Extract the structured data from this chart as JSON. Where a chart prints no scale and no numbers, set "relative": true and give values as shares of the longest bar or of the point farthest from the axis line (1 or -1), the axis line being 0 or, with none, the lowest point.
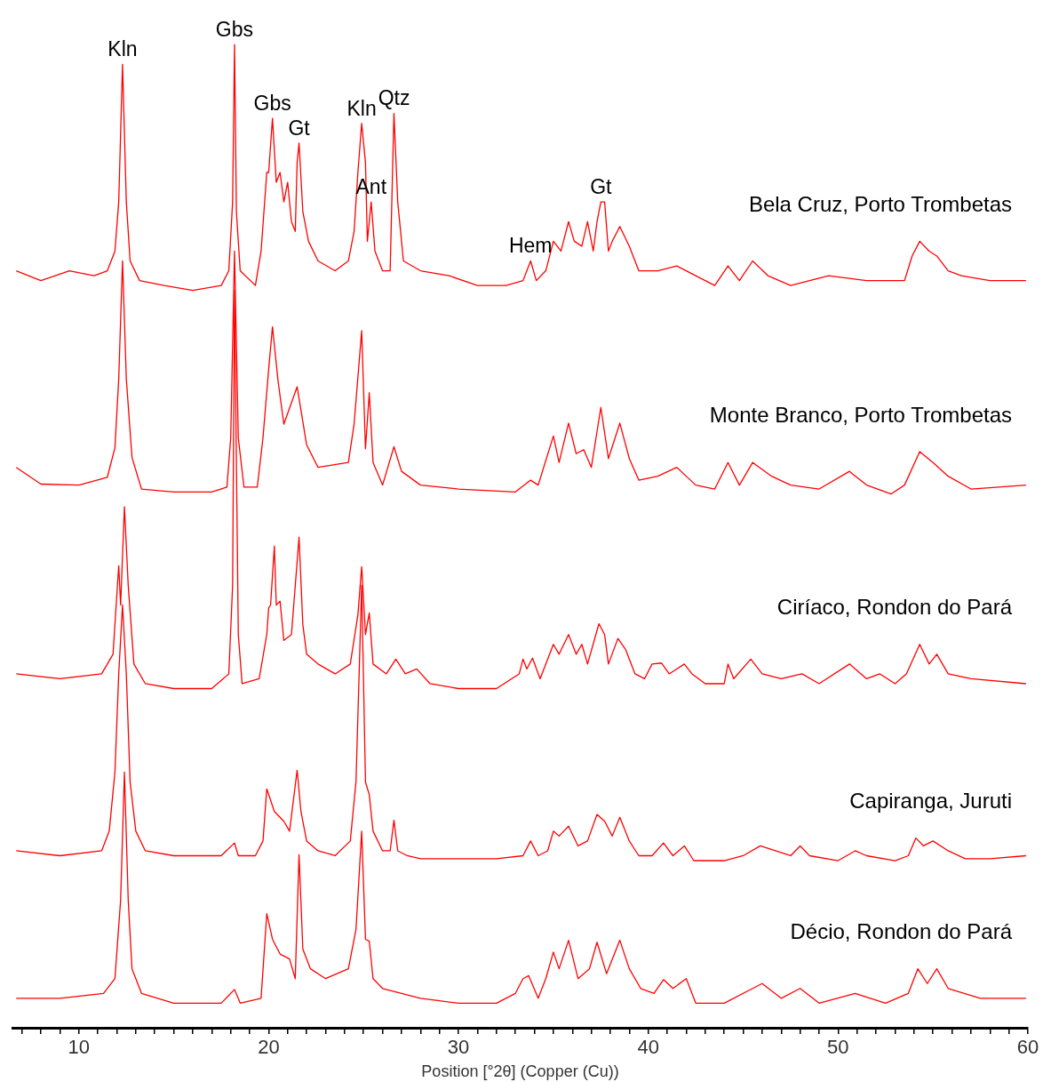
{
  "chart_data": {
    "type": "line",
    "relative": true,
    "xlabel": "Position [°2θ] (Copper (Cu))",
    "xlim": [
      6.5,
      60
    ],
    "xticks": [
      {
        "value": 7,
        "label": null
      },
      {
        "value": 8,
        "label": null
      },
      {
        "value": 9,
        "label": null
      },
      10,
      {
        "value": 11,
        "label": null
      },
      {
        "value": 12,
        "label": null
      },
      {
        "value": 13,
        "label": null
      },
      {
        "value": 14,
        "label": null
      },
      {
        "value": 15,
        "label": null
      },
      {
        "value": 16,
        "label": null
      },
      {
        "value": 17,
        "label": null
      },
      {
        "value": 18,
        "label": null
      },
      {
        "value": 19,
        "label": null
      },
      20,
      {
        "value": 21,
        "label": null
      },
      {
        "value": 22,
        "label": null
      },
      {
        "value": 23,
        "label": null
      },
      {
        "value": 24,
        "label": null
      },
      {
        "value": 25,
        "label": null
      },
      {
        "value": 26,
        "label": null
      },
      {
        "value": 27,
        "label": null
      },
      {
        "value": 28,
        "label": null
      },
      {
        "value": 29,
        "label": null
      },
      30,
      {
        "value": 31,
        "label": null
      },
      {
        "value": 32,
        "label": null
      },
      {
        "value": 33,
        "label": null
      },
      {
        "value": 34,
        "label": null
      },
      {
        "value": 35,
        "label": null
      },
      {
        "value": 36,
        "label": null
      },
      {
        "value": 37,
        "label": null
      },
      {
        "value": 38,
        "label": null
      },
      {
        "value": 39,
        "label": null
      },
      40,
      {
        "value": 41,
        "label": null
      },
      {
        "value": 42,
        "label": null
      },
      {
        "value": 43,
        "label": null
      },
      {
        "value": 44,
        "label": null
      },
      {
        "value": 45,
        "label": null
      },
      {
        "value": 46,
        "label": null
      },
      {
        "value": 47,
        "label": null
      },
      {
        "value": 48,
        "label": null
      },
      {
        "value": 49,
        "label": null
      },
      50,
      {
        "value": 51,
        "label": null
      },
      {
        "value": 52,
        "label": null
      },
      {
        "value": 53,
        "label": null
      },
      {
        "value": 54,
        "label": null
      },
      {
        "value": 55,
        "label": null
      },
      {
        "value": 56,
        "label": null
      },
      {
        "value": 57,
        "label": null
      },
      {
        "value": 58,
        "label": null
      },
      {
        "value": 59,
        "label": null
      },
      60
    ],
    "grid": false,
    "legend": false,
    "marker": "none",
    "line_style": "solid",
    "series": [
      {
        "name": "Bela Cruz, Porto Trombetas",
        "color": "#ff0000",
        "x": [
          6.7,
          8,
          9.5,
          10.8,
          11.5,
          11.9,
          12.1,
          12.3,
          12.5,
          12.7,
          13.2,
          14.5,
          16,
          17.5,
          17.9,
          18.1,
          18.2,
          18.3,
          18.5,
          19.3,
          19.6,
          19.9,
          20.0,
          20.2,
          20.4,
          20.6,
          20.8,
          21.0,
          21.2,
          21.4,
          21.5,
          21.6,
          21.8,
          22.1,
          22.6,
          23.5,
          24.2,
          24.5,
          24.7,
          24.9,
          25.1,
          25.2,
          25.4,
          25.6,
          26.0,
          26.4,
          26.6,
          26.8,
          27.1,
          28,
          29.5,
          31,
          32.5,
          33.4,
          33.8,
          34.1,
          34.6,
          35.0,
          35.4,
          35.8,
          36.1,
          36.5,
          36.8,
          37.1,
          37.3,
          37.5,
          37.7,
          37.9,
          38.1,
          38.5,
          39.0,
          39.5,
          40.5,
          41.5,
          42.5,
          43.5,
          44.2,
          44.8,
          45.5,
          46.3,
          47.5,
          49.5,
          51.5,
          53.5,
          53.9,
          54.3,
          54.8,
          55.2,
          55.8,
          56.5,
          58,
          59.9
        ],
        "values": [
          0.77,
          0.76,
          0.77,
          0.765,
          0.77,
          0.79,
          0.84,
          0.98,
          0.84,
          0.78,
          0.76,
          0.755,
          0.75,
          0.755,
          0.77,
          0.84,
          1.0,
          0.83,
          0.77,
          0.755,
          0.79,
          0.87,
          0.87,
          0.925,
          0.86,
          0.87,
          0.84,
          0.86,
          0.82,
          0.81,
          0.88,
          0.9,
          0.83,
          0.8,
          0.78,
          0.77,
          0.78,
          0.81,
          0.87,
          0.92,
          0.88,
          0.8,
          0.84,
          0.79,
          0.77,
          0.77,
          0.93,
          0.84,
          0.78,
          0.77,
          0.765,
          0.755,
          0.755,
          0.76,
          0.78,
          0.76,
          0.77,
          0.8,
          0.79,
          0.82,
          0.8,
          0.795,
          0.82,
          0.79,
          0.82,
          0.84,
          0.84,
          0.79,
          0.8,
          0.815,
          0.795,
          0.77,
          0.77,
          0.775,
          0.765,
          0.755,
          0.775,
          0.76,
          0.78,
          0.765,
          0.755,
          0.765,
          0.76,
          0.76,
          0.785,
          0.8,
          0.79,
          0.785,
          0.77,
          0.765,
          0.76,
          0.76
        ]
      },
      {
        "name": "Monte Branco, Porto Trombetas",
        "color": "#ff0000",
        "x": [
          6.7,
          8,
          10,
          11.5,
          11.9,
          12.1,
          12.3,
          12.5,
          12.8,
          13.3,
          15,
          17,
          17.8,
          18.0,
          18.2,
          18.4,
          18.7,
          19.4,
          19.7,
          20.0,
          20.2,
          20.5,
          20.8,
          21.5,
          22.0,
          22.6,
          24.2,
          24.5,
          24.9,
          25.1,
          25.3,
          25.5,
          26.0,
          26.6,
          27.0,
          28,
          30,
          33,
          33.8,
          34.2,
          35.0,
          35.3,
          35.8,
          36.2,
          36.6,
          37.0,
          37.5,
          37.9,
          38.5,
          39.0,
          39.5,
          40.5,
          41.5,
          42.5,
          43.5,
          44.2,
          44.8,
          45.5,
          46.5,
          47.5,
          49,
          50.6,
          51.5,
          52.8,
          53.5,
          54.3,
          55.0,
          55.8,
          57,
          59.9
        ],
        "values": [
          0.57,
          0.553,
          0.552,
          0.56,
          0.59,
          0.66,
          0.78,
          0.66,
          0.58,
          0.548,
          0.545,
          0.545,
          0.55,
          0.6,
          0.79,
          0.6,
          0.55,
          0.55,
          0.6,
          0.67,
          0.713,
          0.657,
          0.614,
          0.652,
          0.593,
          0.57,
          0.575,
          0.614,
          0.709,
          0.589,
          0.646,
          0.575,
          0.552,
          0.591,
          0.566,
          0.552,
          0.548,
          0.545,
          0.557,
          0.552,
          0.602,
          0.575,
          0.615,
          0.584,
          0.588,
          0.57,
          0.631,
          0.579,
          0.615,
          0.579,
          0.557,
          0.561,
          0.57,
          0.552,
          0.548,
          0.575,
          0.552,
          0.575,
          0.561,
          0.552,
          0.548,
          0.566,
          0.552,
          0.543,
          0.552,
          0.586,
          0.575,
          0.561,
          0.548,
          0.552
        ]
      },
      {
        "name": "Ciríaco, Rondon do Pará",
        "color": "#ff0000",
        "x": [
          6.7,
          9,
          11.2,
          11.8,
          12.1,
          12.2,
          12.4,
          12.6,
          12.9,
          13.5,
          15,
          17,
          17.9,
          18.1,
          18.2,
          18.4,
          18.6,
          19.5,
          19.9,
          20.0,
          20.1,
          20.3,
          20.4,
          20.6,
          20.8,
          21.2,
          21.6,
          21.8,
          22.0,
          22.6,
          23.5,
          24.3,
          24.7,
          24.9,
          25.1,
          25.3,
          25.5,
          26.2,
          26.7,
          27.2,
          27.8,
          28.5,
          30,
          32,
          33.2,
          33.4,
          33.6,
          33.9,
          34.3,
          35.0,
          35.3,
          35.8,
          36.2,
          36.5,
          36.8,
          37.4,
          37.7,
          37.9,
          38.4,
          38.8,
          39.3,
          39.8,
          40.2,
          40.7,
          41.1,
          41.9,
          42.3,
          43,
          44,
          44.2,
          44.5,
          45.4,
          46,
          47,
          48.1,
          49,
          50.6,
          51.5,
          52.2,
          53,
          53.6,
          54.3,
          54.8,
          55.2,
          55.8,
          57,
          59.9
        ],
        "values": [
          0.36,
          0.355,
          0.36,
          0.38,
          0.47,
          0.43,
          0.53,
          0.45,
          0.37,
          0.35,
          0.345,
          0.345,
          0.36,
          0.45,
          0.75,
          0.4,
          0.35,
          0.355,
          0.4,
          0.427,
          0.43,
          0.49,
          0.43,
          0.434,
          0.394,
          0.4,
          0.499,
          0.41,
          0.38,
          0.37,
          0.36,
          0.37,
          0.42,
          0.469,
          0.4,
          0.422,
          0.37,
          0.36,
          0.375,
          0.36,
          0.365,
          0.35,
          0.345,
          0.345,
          0.36,
          0.375,
          0.365,
          0.376,
          0.355,
          0.39,
          0.38,
          0.4,
          0.38,
          0.39,
          0.37,
          0.411,
          0.4,
          0.37,
          0.396,
          0.385,
          0.36,
          0.355,
          0.37,
          0.371,
          0.36,
          0.37,
          0.36,
          0.35,
          0.35,
          0.37,
          0.355,
          0.375,
          0.36,
          0.355,
          0.36,
          0.35,
          0.37,
          0.355,
          0.36,
          0.35,
          0.36,
          0.39,
          0.37,
          0.38,
          0.36,
          0.355,
          0.35
        ]
      },
      {
        "name": "Capiranga, Juruti",
        "color": "#ff0000",
        "x": [
          6.7,
          9,
          11.2,
          11.6,
          11.9,
          12.1,
          12.3,
          12.5,
          12.7,
          13.0,
          13.5,
          15,
          17.5,
          18.2,
          18.4,
          19.3,
          19.7,
          19.9,
          20.3,
          20.8,
          21.1,
          21.5,
          21.7,
          22.0,
          22.6,
          23.5,
          24.3,
          24.6,
          24.9,
          25.1,
          25.3,
          25.5,
          26.0,
          26.4,
          26.6,
          26.8,
          27.3,
          28,
          30,
          32,
          33.4,
          33.8,
          34.2,
          34.7,
          35.0,
          35.3,
          35.8,
          36.3,
          36.8,
          37.3,
          37.7,
          38.1,
          38.5,
          39.0,
          39.5,
          40.2,
          40.8,
          41.3,
          41.9,
          42.4,
          44,
          45,
          45.9,
          46.7,
          47.5,
          48.0,
          48.5,
          50,
          50.9,
          51.5,
          53,
          53.7,
          54.1,
          54.5,
          55.0,
          55.8,
          56.7,
          58,
          59.9
        ],
        "values": [
          0.18,
          0.175,
          0.18,
          0.2,
          0.26,
          0.36,
          0.43,
          0.36,
          0.25,
          0.2,
          0.18,
          0.175,
          0.175,
          0.188,
          0.175,
          0.175,
          0.19,
          0.243,
          0.22,
          0.21,
          0.2,
          0.262,
          0.22,
          0.19,
          0.18,
          0.175,
          0.19,
          0.25,
          0.45,
          0.25,
          0.237,
          0.2,
          0.18,
          0.18,
          0.211,
          0.18,
          0.175,
          0.172,
          0.172,
          0.172,
          0.175,
          0.19,
          0.175,
          0.18,
          0.2,
          0.195,
          0.205,
          0.185,
          0.19,
          0.217,
          0.21,
          0.195,
          0.214,
          0.19,
          0.175,
          0.175,
          0.188,
          0.175,
          0.185,
          0.17,
          0.17,
          0.175,
          0.185,
          0.18,
          0.175,
          0.185,
          0.175,
          0.17,
          0.18,
          0.175,
          0.17,
          0.175,
          0.193,
          0.185,
          0.19,
          0.18,
          0.172,
          0.172,
          0.175
        ]
      },
      {
        "name": "Décio, Rondon do Pará",
        "color": "#ff0000",
        "x": [
          6.7,
          9,
          11.3,
          11.9,
          12.2,
          12.4,
          12.6,
          12.8,
          13.3,
          15,
          17.5,
          18.2,
          18.5,
          19.6,
          19.9,
          20.2,
          20.6,
          21.1,
          21.4,
          21.6,
          21.8,
          22.2,
          23,
          24.2,
          24.6,
          24.9,
          25.1,
          25.3,
          25.5,
          26,
          27,
          28,
          30,
          32,
          33.0,
          33.4,
          33.7,
          34.2,
          34.6,
          35.0,
          35.3,
          35.8,
          36.3,
          36.9,
          37.3,
          37.8,
          38.5,
          39.0,
          39.6,
          40.3,
          40.8,
          41.3,
          42.0,
          42.5,
          44,
          45.5,
          46,
          47,
          48,
          49,
          50.9,
          52.5,
          53.7,
          54.2,
          54.7,
          55.2,
          55.8,
          57.5,
          59.9
        ],
        "values": [
          0.03,
          0.03,
          0.035,
          0.05,
          0.13,
          0.26,
          0.13,
          0.06,
          0.035,
          0.025,
          0.025,
          0.039,
          0.025,
          0.03,
          0.116,
          0.09,
          0.075,
          0.07,
          0.05,
          0.176,
          0.08,
          0.06,
          0.05,
          0.06,
          0.1,
          0.2,
          0.09,
          0.088,
          0.05,
          0.04,
          0.035,
          0.03,
          0.025,
          0.025,
          0.035,
          0.05,
          0.053,
          0.03,
          0.05,
          0.077,
          0.06,
          0.089,
          0.05,
          0.06,
          0.087,
          0.055,
          0.089,
          0.06,
          0.04,
          0.035,
          0.049,
          0.04,
          0.05,
          0.025,
          0.025,
          0.04,
          0.045,
          0.03,
          0.04,
          0.025,
          0.035,
          0.025,
          0.035,
          0.06,
          0.045,
          0.06,
          0.04,
          0.03,
          0.03
        ]
      }
    ],
    "annotations": [
      {
        "text": "Kln",
        "x": 12.3,
        "y": 0.98
      },
      {
        "text": "Gbs",
        "x": 18.2,
        "y": 1.0
      },
      {
        "text": "Gbs",
        "x": 20.2,
        "y": 0.925
      },
      {
        "text": "Gt",
        "x": 21.6,
        "y": 0.9
      },
      {
        "text": "Kln",
        "x": 24.9,
        "y": 0.92
      },
      {
        "text": "Ant",
        "x": 25.4,
        "y": 0.84
      },
      {
        "text": "Qtz",
        "x": 26.6,
        "y": 0.93
      },
      {
        "text": "Hem",
        "x": 33.8,
        "y": 0.78
      },
      {
        "text": "Gt",
        "x": 37.5,
        "y": 0.84
      }
    ]
  }
}
